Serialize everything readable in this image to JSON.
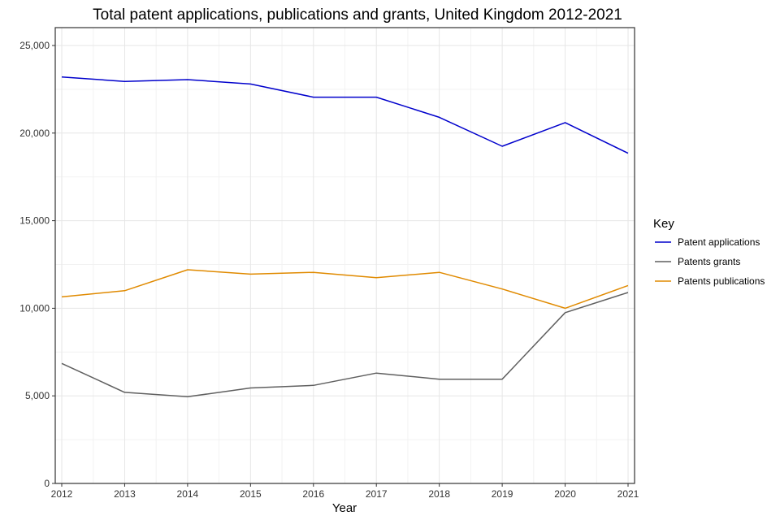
{
  "chart_data": {
    "type": "line",
    "title": "Total patent applications, publications and grants, United Kingdom 2012-2021",
    "xlabel": "Year",
    "ylabel": "",
    "x": [
      2012,
      2013,
      2014,
      2015,
      2016,
      2017,
      2018,
      2019,
      2020,
      2021
    ],
    "x_tick_labels": [
      "2012",
      "2013",
      "2014",
      "2015",
      "2016",
      "2017",
      "2018",
      "2019",
      "2020",
      "2021"
    ],
    "ylim": [
      0,
      25000
    ],
    "y_ticks": [
      0,
      5000,
      10000,
      15000,
      20000,
      25000
    ],
    "y_tick_labels": [
      "0",
      "5,000",
      "10,000",
      "15,000",
      "20,000",
      "25,000"
    ],
    "grid": true,
    "legend": {
      "title": "Key",
      "position": "right"
    },
    "series": [
      {
        "name": "Patent applications",
        "color": "#0000cc",
        "values": [
          23200,
          22950,
          23050,
          22800,
          22050,
          22050,
          20900,
          19250,
          20600,
          18850
        ]
      },
      {
        "name": "Patents grants",
        "color": "#5f5f5f",
        "values": [
          6850,
          5200,
          4950,
          5450,
          5600,
          6300,
          5950,
          5950,
          9750,
          10900
        ]
      },
      {
        "name": "Patents publications",
        "color": "#e08a00",
        "values": [
          10650,
          11000,
          12200,
          11950,
          12050,
          11750,
          12050,
          11100,
          10000,
          11300
        ]
      }
    ]
  }
}
